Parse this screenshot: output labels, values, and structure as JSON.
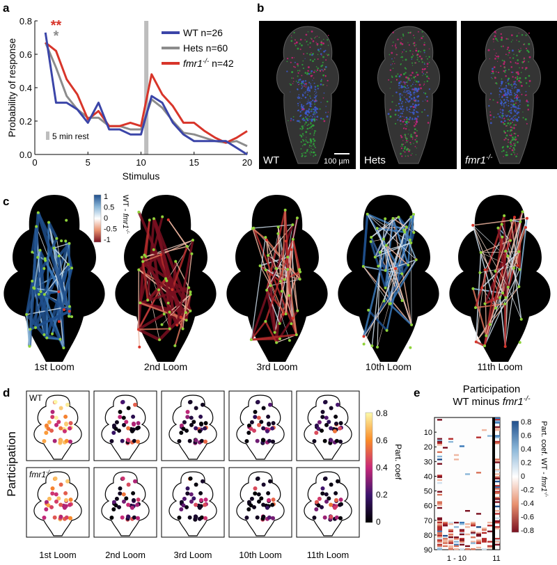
{
  "panels": {
    "a": {
      "letter": "a",
      "chart_data": {
        "type": "line",
        "xlabel": "Stimulus",
        "ylabel": "Probability of response",
        "xlim": [
          0,
          20
        ],
        "ylim": [
          0,
          0.8
        ],
        "xticks": [
          0,
          5,
          10,
          15,
          20
        ],
        "yticks": [
          "0.0",
          "0.2",
          "0.4",
          "0.6",
          "0.8"
        ],
        "x": [
          1,
          2,
          3,
          4,
          5,
          6,
          7,
          8,
          9,
          10,
          11,
          12,
          13,
          14,
          15,
          16,
          17,
          18,
          19,
          20
        ],
        "series": [
          {
            "name": "WT n=26",
            "color": "#3b45a8",
            "values": [
              0.73,
              0.31,
              0.31,
              0.27,
              0.19,
              0.31,
              0.15,
              0.15,
              0.12,
              0.12,
              0.35,
              0.31,
              0.19,
              0.12,
              0.08,
              0.08,
              0.08,
              0.08,
              0.04,
              0.0
            ]
          },
          {
            "name": "Hets n=60",
            "color": "#8c8c8c",
            "values": [
              0.67,
              0.52,
              0.35,
              0.27,
              0.22,
              0.22,
              0.17,
              0.17,
              0.15,
              0.15,
              0.33,
              0.28,
              0.2,
              0.13,
              0.12,
              0.1,
              0.08,
              0.07,
              0.08,
              0.05
            ]
          },
          {
            "name": "fmr1-/- n=42",
            "color": "#d8352a",
            "values": [
              0.67,
              0.62,
              0.45,
              0.36,
              0.21,
              0.26,
              0.17,
              0.17,
              0.19,
              0.17,
              0.48,
              0.36,
              0.29,
              0.19,
              0.19,
              0.14,
              0.1,
              0.07,
              0.1,
              0.14
            ]
          }
        ],
        "legend": [
          {
            "name": "WT",
            "suffix": " n=26",
            "color": "#3b45a8"
          },
          {
            "name": "Hets",
            "suffix": " n=60",
            "color": "#8c8c8c"
          },
          {
            "name": "fmr1",
            "sup": "-/-",
            "suffix": " n=42",
            "color": "#d8352a",
            "italic": true
          }
        ],
        "rest_marker_x": 10.5,
        "rest_label": "5 min rest",
        "sig_red": "**",
        "sig_gray": "*"
      }
    },
    "b": {
      "letter": "b",
      "tiles": [
        {
          "label": "WT",
          "italic": false
        },
        {
          "label": "Hets",
          "italic": false
        },
        {
          "label": "fmr1",
          "sup": "-/-",
          "italic": true
        }
      ],
      "scalebar": "100 µm"
    },
    "c": {
      "letter": "c",
      "colorbar": {
        "ticks": [
          "1",
          "0.5",
          "0",
          "-0.5",
          "-1"
        ],
        "label": "WT - ",
        "label_italic": "fmr1",
        "label_sup": "-/-"
      },
      "captions": [
        "1st Loom",
        "2nd Loom",
        "3rd Loom",
        "10th Loom",
        "11th Loom"
      ]
    },
    "d": {
      "letter": "d",
      "ylabel": "Participation",
      "row_labels": [
        {
          "text": "WT"
        },
        {
          "text": "fmr1",
          "sup": "-/-"
        }
      ],
      "captions": [
        "1st Loom",
        "2nd Loom",
        "3rd Loom",
        "10th Loom",
        "11th Loom"
      ],
      "colorbar": {
        "ticks": [
          "0.8",
          "0.6",
          "0.4",
          "0.2",
          "0"
        ],
        "label": "Part. coef"
      }
    },
    "e": {
      "letter": "e",
      "title_line1": "Participation",
      "title_line2": "WT minus ",
      "title_italic": "fmr1",
      "title_sup": "-/-",
      "yticks": [
        "10",
        "20",
        "30",
        "40",
        "50",
        "60",
        "70",
        "80",
        "90"
      ],
      "xlabels": [
        "1 - 10",
        "11"
      ],
      "colorbar": {
        "ticks": [
          "0.8",
          "0.6",
          "0.4",
          "0.2",
          "0",
          "-0.2",
          "-0.4",
          "-0.6",
          "-0.8"
        ],
        "label": "Part. coef. WT - ",
        "label_italic": "fmr1",
        "label_sup": "-/-"
      }
    }
  }
}
